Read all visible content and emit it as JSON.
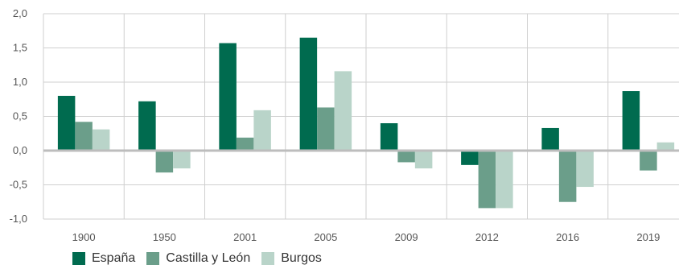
{
  "chart_data": {
    "type": "bar",
    "categories": [
      "1900",
      "1950",
      "2001",
      "2005",
      "2009",
      "2012",
      "2016",
      "2019"
    ],
    "series": [
      {
        "name": "España",
        "color": "#006b4f",
        "values": [
          0.8,
          0.72,
          1.57,
          1.65,
          0.4,
          -0.21,
          0.33,
          0.87
        ]
      },
      {
        "name": "Castilla y León",
        "color": "#6b9e8a",
        "values": [
          0.42,
          -0.32,
          0.19,
          0.63,
          -0.17,
          -0.84,
          -0.75,
          -0.29
        ]
      },
      {
        "name": "Burgos",
        "color": "#b9d4c9",
        "values": [
          0.31,
          -0.26,
          0.59,
          1.16,
          -0.26,
          -0.84,
          -0.53,
          0.12
        ]
      }
    ],
    "ytick_labels": [
      "2,0",
      "1,5",
      "1,0",
      "0,5",
      "0,0",
      "-0,5",
      "-1,0"
    ],
    "ylim": [
      -1.0,
      2.0
    ],
    "grid": true,
    "legend_position": "bottom-left",
    "title": "",
    "xlabel": "",
    "ylabel": ""
  }
}
